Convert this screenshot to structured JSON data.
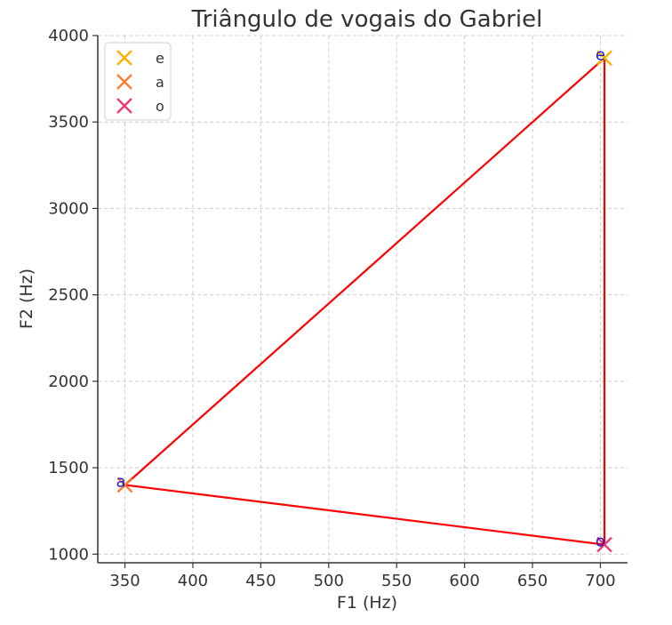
{
  "chart_data": {
    "type": "scatter",
    "title": "Triângulo de vogais do Gabriel",
    "xlabel": "F1 (Hz)",
    "ylabel": "F2 (Hz)",
    "xlim": [
      330,
      720
    ],
    "ylim": [
      950,
      4000
    ],
    "xticks": [
      350,
      400,
      450,
      500,
      550,
      600,
      650,
      700
    ],
    "yticks": [
      1000,
      1500,
      2000,
      2500,
      3000,
      3500,
      4000
    ],
    "grid": true,
    "legend_position": "top-left",
    "series": [
      {
        "name": "e",
        "x": 703,
        "y": 3870,
        "color": "#FFB000"
      },
      {
        "name": "a",
        "x": 350,
        "y": 1400,
        "color": "#FF7A33"
      },
      {
        "name": "o",
        "x": 703,
        "y": 1055,
        "color": "#F0386B"
      }
    ],
    "point_labels": [
      {
        "text": "e",
        "x": 700,
        "y": 3870
      },
      {
        "text": "a",
        "x": 347,
        "y": 1400
      },
      {
        "text": "o",
        "x": 700,
        "y": 1055
      }
    ],
    "point_label_color": "#1a1ad6",
    "triangle": {
      "color": "#ff0000",
      "order": [
        "e",
        "a",
        "o",
        "e"
      ]
    }
  }
}
